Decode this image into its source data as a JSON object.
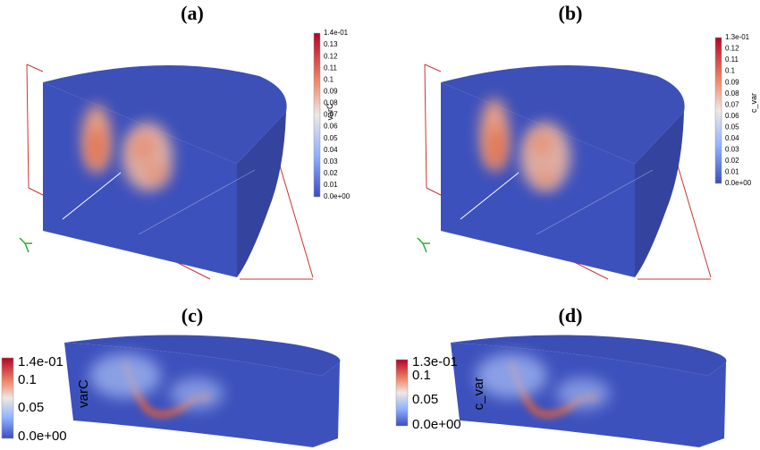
{
  "panels": [
    {
      "label": "(a)",
      "colorbar": {
        "title": "varC",
        "ticks": [
          "1.4e-01",
          "0.13",
          "0.12",
          "0.11",
          "0.1",
          "0.09",
          "0.08",
          "0.07",
          "0.06",
          "0.05",
          "0.04",
          "0.03",
          "0.02",
          "0.01",
          "0.0e+00"
        ]
      }
    },
    {
      "label": "(b)",
      "colorbar": {
        "title": "c_var",
        "ticks": [
          "1.3e-01",
          "0.12",
          "0.11",
          "0.1",
          "0.09",
          "0.08",
          "0.07",
          "0.06",
          "0.05",
          "0.04",
          "0.03",
          "0.02",
          "0.01",
          "0.0e+00"
        ]
      }
    },
    {
      "label": "(c)",
      "colorbar": {
        "title": "varC",
        "ticks": [
          "1.4e-01",
          "0.1",
          "0.05",
          "0.0e+00"
        ]
      }
    },
    {
      "label": "(d)",
      "colorbar": {
        "title": "c_var",
        "ticks": [
          "1.3e-01",
          "0.1",
          "0.05",
          "0.0e+00"
        ]
      }
    }
  ]
}
